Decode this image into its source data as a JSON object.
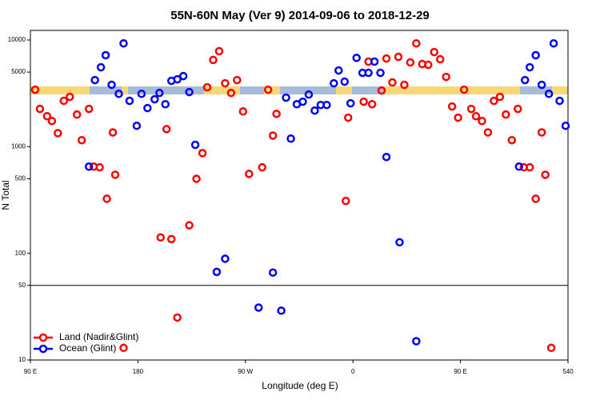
{
  "chart_data": {
    "type": "scatter",
    "title": "55N-60N May (Ver 9)   2014-09-06 to 2018-12-29",
    "x_label": "Longitude (deg E)",
    "y_label": "N Total",
    "ylog": true,
    "xlim": [
      90,
      540
    ],
    "ylim": [
      10,
      12300
    ],
    "xticks": [
      {
        "value": 90,
        "label": "90 E"
      },
      180,
      {
        "value": 270,
        "label": "90 W"
      },
      {
        "value": 360,
        "label": "0"
      },
      {
        "value": 450,
        "label": "90 E"
      },
      540
    ],
    "yticks": [
      10,
      50,
      100,
      500,
      1000,
      5000,
      10000
    ],
    "legend": "bottom-left",
    "series": [
      {
        "name": "Land (Nadir&Glint)",
        "color": "#ff0000",
        "x": [
          94,
          98,
          104,
          108,
          113,
          118,
          123,
          129,
          133,
          139,
          143,
          148,
          154,
          159,
          161,
          168,
          199,
          204,
          208,
          213,
          223,
          229,
          234,
          238,
          243,
          248,
          253,
          258,
          263,
          268,
          273,
          284,
          289,
          293,
          296,
          354,
          356,
          369,
          373,
          376,
          384,
          388,
          393,
          398,
          403,
          408,
          413,
          418,
          423,
          428,
          433,
          438,
          443,
          448,
          453,
          459,
          463,
          468,
          473,
          478,
          483,
          488,
          493,
          498,
          503,
          508,
          513,
          518,
          521,
          526
        ],
        "values": [
          3420,
          2260,
          1930,
          1740,
          1340,
          2690,
          2930,
          2000,
          1150,
          2260,
          650,
          640,
          325,
          1360,
          545,
          13,
          141,
          1460,
          136,
          25,
          183,
          500,
          870,
          3600,
          6500,
          7850,
          3930,
          3190,
          4210,
          2140,
          555,
          640,
          3420,
          1270,
          2030,
          310,
          1870,
          2640,
          6270,
          2500,
          3360,
          6700,
          4000,
          6950,
          3800,
          6160,
          9300,
          5950,
          5850,
          7700,
          6600,
          4510,
          2380,
          1870,
          3420,
          2260,
          1930,
          1740,
          1360,
          2690,
          2930,
          2000,
          1150,
          2260,
          640,
          640,
          325,
          1360,
          545,
          13
        ]
      },
      {
        "name": "Ocean (Glint)",
        "color": "#0000ff",
        "x": [
          139,
          144,
          149,
          153,
          158,
          164,
          168,
          173,
          179,
          183,
          188,
          194,
          198,
          203,
          208,
          213,
          218,
          223,
          228,
          246,
          253,
          281,
          293,
          300,
          304,
          308,
          313,
          318,
          323,
          328,
          333,
          338,
          344,
          348,
          353,
          358,
          363,
          368,
          373,
          378,
          383,
          388,
          399,
          413,
          499,
          504,
          508,
          513,
          518,
          524,
          528,
          533,
          538
        ],
        "values": [
          650,
          4210,
          5550,
          7200,
          3800,
          3130,
          9300,
          2690,
          1570,
          3130,
          2300,
          2780,
          3190,
          2500,
          4140,
          4280,
          4590,
          3250,
          1040,
          67,
          89,
          31,
          66,
          29,
          2880,
          1190,
          2500,
          2640,
          3080,
          2180,
          2460,
          2460,
          3930,
          5180,
          4070,
          2550,
          6800,
          4920,
          4920,
          6270,
          4920,
          800,
          127,
          15,
          650,
          4210,
          5550,
          7200,
          3800,
          3130,
          9300,
          2690,
          1570
        ]
      }
    ]
  }
}
